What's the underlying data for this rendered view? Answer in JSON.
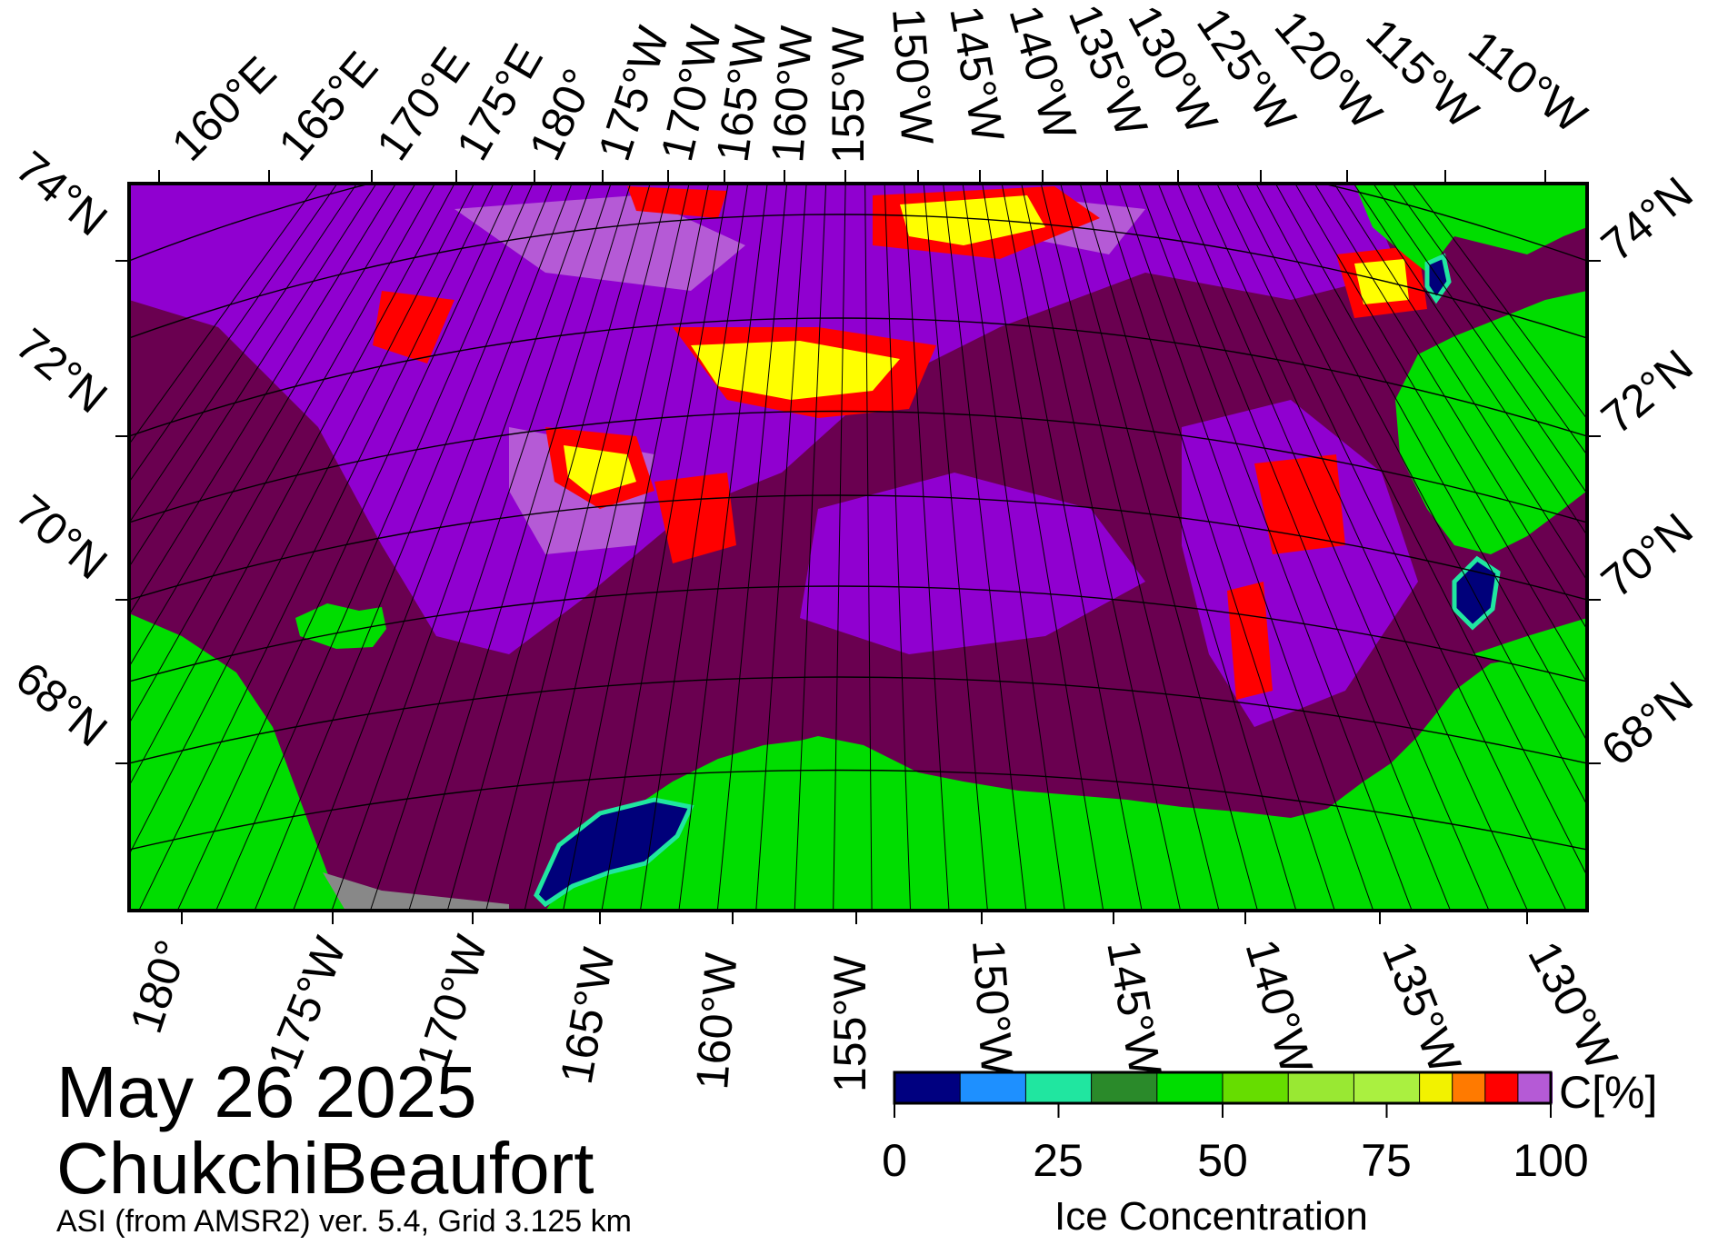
{
  "map": {
    "title_date": "May 26 2025",
    "region": "ChukchiBeaufort",
    "product_info": "ASI (from AMSR2) ver. 5.4,  Grid 3.125 km",
    "projection": "polar stereographic, north",
    "top_lon_labels": [
      "160°E",
      "165°E",
      "170°E",
      "175°E",
      "180°",
      "175°W",
      "170°W",
      "165°W",
      "160°W",
      "155°W",
      "150°W",
      "145°W",
      "140°W",
      "135°W",
      "130°W",
      "125°W",
      "120°W",
      "115°W",
      "110°W"
    ],
    "bottom_lon_labels": [
      "180°",
      "175°W",
      "170°W",
      "165°W",
      "160°W",
      "155°W",
      "150°W",
      "145°W",
      "140°W",
      "135°W",
      "130°W"
    ],
    "left_lat_labels": [
      "74°N",
      "72°N",
      "70°N",
      "68°N"
    ],
    "right_lat_labels": [
      "74°N",
      "72°N",
      "70°N",
      "68°N"
    ],
    "colors": {
      "ice_100": "#6a0050",
      "ice_95": "#9000d0",
      "ice_90": "#b55ad6",
      "ice_85": "#ff0000",
      "ice_80": "#ff7a00",
      "ice_75": "#ffff00",
      "ice_low": "#a8f040",
      "land": "#00dd00",
      "open_water": "#00007a",
      "missing": "#888888"
    }
  },
  "colorbar": {
    "title": "Ice Concentration",
    "unit": "C[%]",
    "ticks": [
      "0",
      "25",
      "50",
      "75",
      "100"
    ],
    "colors": [
      "#000080",
      "#1e90ff",
      "#20e6a0",
      "#2a8a2a",
      "#00dd00",
      "#66dd00",
      "#99e833",
      "#aaf040",
      "#f2f200",
      "#ff7a00",
      "#ff0000",
      "#b55ad6",
      "#9000d0"
    ]
  }
}
